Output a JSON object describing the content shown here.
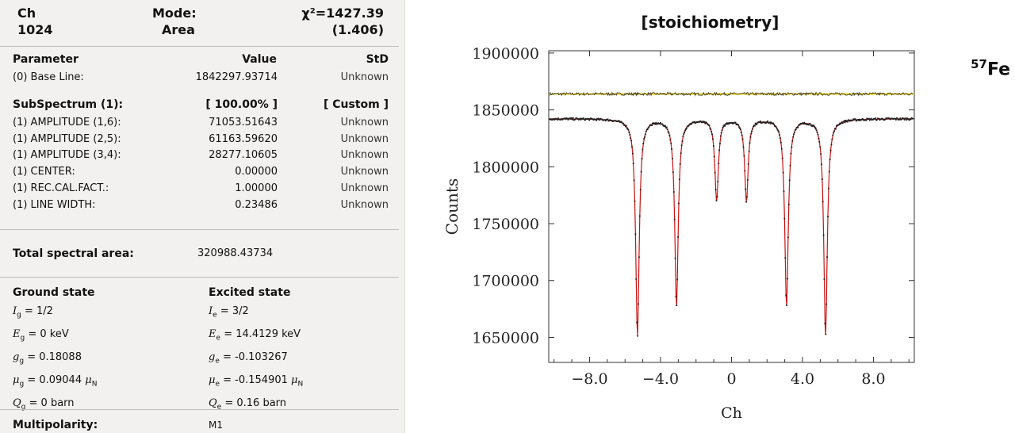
{
  "header": {
    "ch_label": "Ch",
    "ch_value": "1024",
    "mode_label": "Mode:",
    "mode_value": "Area",
    "chi_label": "χ²=1427.39",
    "chi_value": "(1.406)"
  },
  "params": {
    "col_param": "Parameter",
    "col_value": "Value",
    "col_std": "StD",
    "base_line": {
      "name": "(0) Base Line:",
      "value": "1842297.93714",
      "std": "Unknown"
    },
    "subspectrum": {
      "name": "SubSpectrum (1):",
      "value": "[ 100.00% ]",
      "std": "[ Custom ]"
    },
    "rows": [
      {
        "name": "(1) AMPLITUDE (1,6):",
        "value": "71053.51643",
        "std": "Unknown"
      },
      {
        "name": "(1) AMPLITUDE (2,5):",
        "value": "61163.59620",
        "std": "Unknown"
      },
      {
        "name": "(1) AMPLITUDE (3,4):",
        "value": "28277.10605",
        "std": "Unknown"
      },
      {
        "name": "(1) CENTER:",
        "value": "0.00000",
        "std": "Unknown"
      },
      {
        "name": "(1) REC.CAL.FACT.:",
        "value": "1.00000",
        "std": "Unknown"
      },
      {
        "name": "(1) LINE WIDTH:",
        "value": "0.23486",
        "std": "Unknown"
      }
    ]
  },
  "total": {
    "label": "Total spectral area:",
    "value": "320988.43734"
  },
  "ground": {
    "title": "Ground state",
    "I": "= 1/2",
    "E": "= 0 keV",
    "g": "= 0.18088",
    "mu": "= 0.09044",
    "Q": "= 0 barn"
  },
  "excited": {
    "title": "Excited state",
    "I": "= 3/2",
    "E": "= 14.4129 keV",
    "g": "= -0.103267",
    "mu": "= -0.154901",
    "Q": "= 0.16 barn"
  },
  "multipolarity": {
    "label": "Multipolarity:",
    "value": "M1"
  },
  "isotope": {
    "mass": "57",
    "symbol": "Fe"
  },
  "chart_data": {
    "type": "scatter",
    "title": "[stoichiometry]",
    "xlabel": "Ch",
    "ylabel": "Counts",
    "xlim": [
      -10.3,
      10.3
    ],
    "ylim": [
      1628000,
      1902000
    ],
    "xticks": [
      -8.0,
      -4.0,
      0,
      4.0,
      8.0
    ],
    "xtick_labels": [
      "−8.0",
      "−4.0",
      "0",
      "4.0",
      "8.0"
    ],
    "yticks": [
      1650000,
      1700000,
      1750000,
      1800000,
      1850000,
      1900000
    ],
    "ytick_labels": [
      "1650000",
      "1700000",
      "1750000",
      "1800000",
      "1850000",
      "1900000"
    ],
    "baseline": 1842300,
    "lines": [
      {
        "position": -5.3,
        "depth": 191000
      },
      {
        "position": -3.1,
        "depth": 165000
      },
      {
        "position": -0.84,
        "depth": 72000
      },
      {
        "position": 0.84,
        "depth": 72000
      },
      {
        "position": 3.1,
        "depth": 165000
      },
      {
        "position": 5.3,
        "depth": 191000
      }
    ],
    "line_width": 0.23486,
    "residual_offset": 1864000,
    "colors": {
      "fit": "#cc1111",
      "data": "#222222",
      "residual_ref": "#e8d400",
      "residual": "#333333"
    }
  }
}
